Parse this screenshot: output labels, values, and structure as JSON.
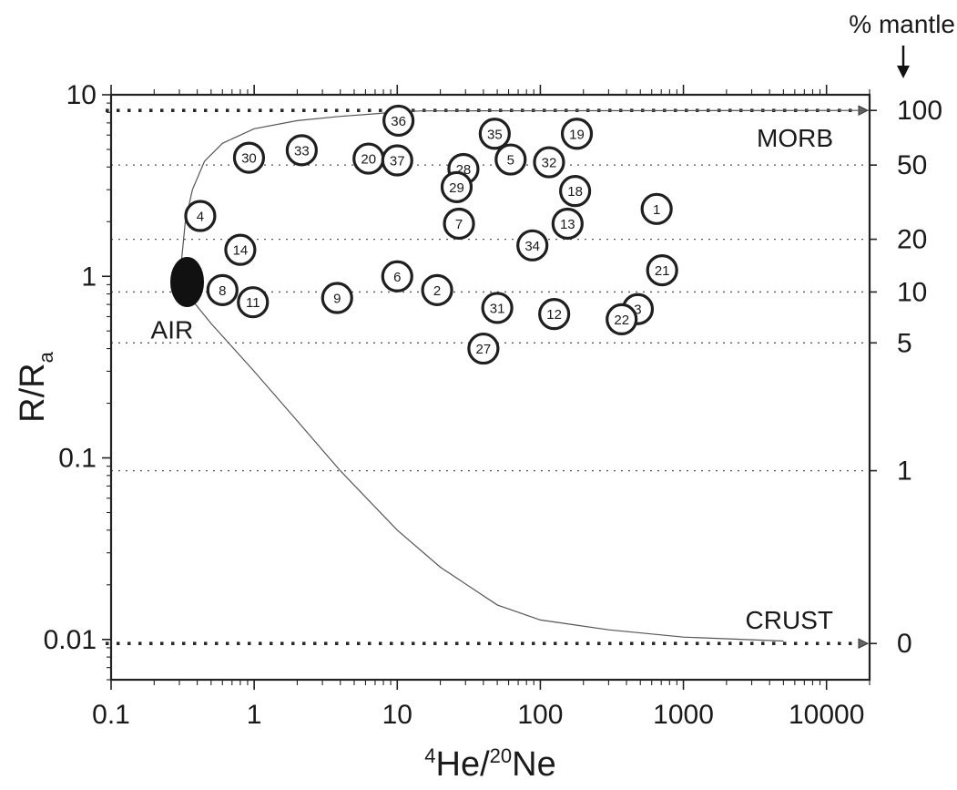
{
  "chart_data": {
    "type": "scatter",
    "x_scale": "log",
    "y_scale": "log",
    "xlim": [
      0.1,
      20000
    ],
    "ylim": [
      0.006,
      10
    ],
    "x_ticks": [
      0.1,
      1,
      10,
      100,
      1000,
      10000
    ],
    "x_tick_labels": [
      "0.1",
      "1",
      "10",
      "100",
      "1000",
      "10000"
    ],
    "y_ticks": [
      0.01,
      0.1,
      1,
      10
    ],
    "y_tick_labels": [
      "0.01",
      "0.1",
      "1",
      "10"
    ],
    "xlabel": {
      "sup1": "4",
      "base1": "He/",
      "sup2": "20",
      "base2": "Ne"
    },
    "ylabel": {
      "base": "R/R",
      "sub": "a"
    },
    "right_axis": {
      "title": "% mantle",
      "ticks": [
        {
          "label": "100",
          "y": 8.2
        },
        {
          "label": "50",
          "y": 4.1
        },
        {
          "label": "20",
          "y": 1.6
        },
        {
          "label": "10",
          "y": 0.82
        },
        {
          "label": "5",
          "y": 0.43
        },
        {
          "label": "1",
          "y": 0.085
        },
        {
          "label": "0",
          "y": 0.0095
        }
      ]
    },
    "bound_lines": [
      {
        "label": "MORB",
        "y": 8.2
      },
      {
        "label": "CRUST",
        "y": 0.0095
      }
    ],
    "air": {
      "label": "AIR",
      "x": 0.34,
      "y": 0.93
    },
    "points": [
      {
        "label": "1",
        "x": 650,
        "y": 2.35
      },
      {
        "label": "2",
        "x": 19,
        "y": 0.84
      },
      {
        "label": "3",
        "x": 480,
        "y": 0.66
      },
      {
        "label": "4",
        "x": 0.42,
        "y": 2.15
      },
      {
        "label": "5",
        "x": 62,
        "y": 4.4
      },
      {
        "label": "6",
        "x": 10,
        "y": 1.0
      },
      {
        "label": "7",
        "x": 27,
        "y": 1.95
      },
      {
        "label": "8",
        "x": 0.6,
        "y": 0.84
      },
      {
        "label": "9",
        "x": 3.8,
        "y": 0.76
      },
      {
        "label": "11",
        "x": 0.98,
        "y": 0.72
      },
      {
        "label": "12",
        "x": 125,
        "y": 0.62
      },
      {
        "label": "13",
        "x": 155,
        "y": 1.95
      },
      {
        "label": "14",
        "x": 0.8,
        "y": 1.4
      },
      {
        "label": "18",
        "x": 175,
        "y": 2.95
      },
      {
        "label": "19",
        "x": 180,
        "y": 6.1
      },
      {
        "label": "20",
        "x": 6.3,
        "y": 4.45
      },
      {
        "label": "21",
        "x": 710,
        "y": 1.08
      },
      {
        "label": "22",
        "x": 370,
        "y": 0.58
      },
      {
        "label": "27",
        "x": 40,
        "y": 0.4
      },
      {
        "label": "28",
        "x": 29,
        "y": 3.9
      },
      {
        "label": "29",
        "x": 26,
        "y": 3.1
      },
      {
        "label": "30",
        "x": 0.92,
        "y": 4.5
      },
      {
        "label": "31",
        "x": 50,
        "y": 0.67
      },
      {
        "label": "32",
        "x": 115,
        "y": 4.25
      },
      {
        "label": "33",
        "x": 2.15,
        "y": 4.95
      },
      {
        "label": "34",
        "x": 88,
        "y": 1.48
      },
      {
        "label": "35",
        "x": 48,
        "y": 6.1
      },
      {
        "label": "36",
        "x": 10.2,
        "y": 7.2
      },
      {
        "label": "37",
        "x": 10.0,
        "y": 4.35
      }
    ],
    "mixing_curves": [
      {
        "points": [
          [
            0.31,
            1.2
          ],
          [
            0.33,
            2.0
          ],
          [
            0.37,
            3.0
          ],
          [
            0.45,
            4.3
          ],
          [
            0.6,
            5.4
          ],
          [
            1,
            6.5
          ],
          [
            2,
            7.2
          ],
          [
            4,
            7.6
          ],
          [
            7,
            7.85
          ],
          [
            10,
            8.05
          ],
          [
            15,
            8.15
          ],
          [
            20000,
            8.2
          ]
        ]
      },
      {
        "points": [
          [
            0.34,
            0.8
          ],
          [
            0.5,
            0.55
          ],
          [
            1,
            0.3
          ],
          [
            2,
            0.16
          ],
          [
            4,
            0.085
          ],
          [
            10,
            0.04
          ],
          [
            20,
            0.025
          ],
          [
            50,
            0.0155
          ],
          [
            100,
            0.0128
          ],
          [
            300,
            0.0113
          ],
          [
            1000,
            0.0103
          ],
          [
            5000,
            0.0098
          ]
        ]
      }
    ]
  }
}
